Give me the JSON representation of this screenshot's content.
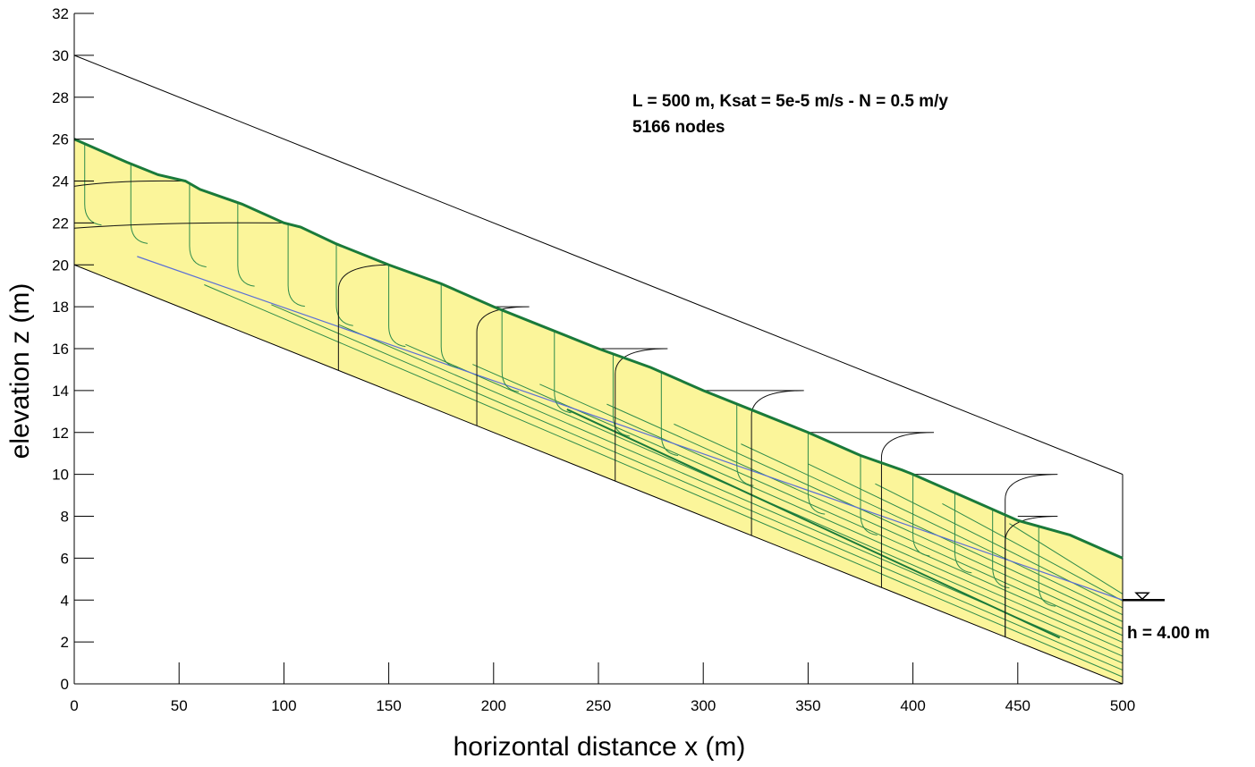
{
  "chart_data": {
    "type": "line",
    "xlabel": "horizontal distance x (m)",
    "ylabel": "elevation z (m)",
    "xlim": [
      0,
      500
    ],
    "ylim": [
      0,
      32
    ],
    "x_ticks": [
      0,
      50,
      100,
      150,
      200,
      250,
      300,
      350,
      400,
      450,
      500
    ],
    "y_ticks": [
      0,
      2,
      4,
      6,
      8,
      10,
      12,
      14,
      16,
      18,
      20,
      22,
      24,
      26,
      28,
      30,
      32
    ],
    "grid": false,
    "annotations": {
      "line1": "L = 500 m, Ksat = 5e-5 m/s - N = 0.5 m/y",
      "line2": "5166 nodes",
      "water_level": "h = 4.00 m"
    },
    "colors": {
      "fill": "#fbf59a",
      "water_table": "#1a7a3a",
      "equipotential": "#111111",
      "streamline": "#2e8b4a",
      "blue_line": "#5a6fd6"
    },
    "boundaries": {
      "land_surface": {
        "x": [
          0,
          500
        ],
        "y": [
          30,
          10
        ]
      },
      "bedrock": {
        "x": [
          0,
          500
        ],
        "y": [
          20,
          0
        ]
      },
      "right_boundary": {
        "x": [
          500,
          500
        ],
        "y": [
          0,
          10
        ]
      }
    },
    "water_table": {
      "x": [
        0,
        25,
        40,
        53,
        60,
        80,
        100,
        108,
        125,
        150,
        175,
        200,
        225,
        250,
        275,
        300,
        325,
        350,
        375,
        395,
        400,
        425,
        450,
        475,
        500
      ],
      "y": [
        26.0,
        24.9,
        24.3,
        24.0,
        23.6,
        22.9,
        22.0,
        21.8,
        21.0,
        20.0,
        19.1,
        18.0,
        17.0,
        16.0,
        15.1,
        14.0,
        13.0,
        12.0,
        10.9,
        10.2,
        10.0,
        8.9,
        7.8,
        7.1,
        6.0
      ]
    },
    "equipotentials": [
      {
        "head": 24,
        "x_start": 0,
        "x_crest": 52,
        "x_base": 52
      },
      {
        "head": 22,
        "x_start": 0,
        "x_crest": 100,
        "x_base": 57
      },
      {
        "head": 20,
        "x_start": 0,
        "x_crest": 150,
        "x_base": 126
      },
      {
        "head": 18,
        "x_start": 0,
        "x_crest": 200,
        "x_base": 192
      },
      {
        "head": 16,
        "x_start": 0,
        "x_crest": 250,
        "x_base": 258
      },
      {
        "head": 14,
        "x_start": 0,
        "x_crest": 300,
        "x_base": 323
      },
      {
        "head": 12,
        "x_start": 0,
        "x_crest": 350,
        "x_base": 385
      },
      {
        "head": 10,
        "x_start": 0,
        "x_crest": 400,
        "x_base": 444
      },
      {
        "head": 8,
        "x_start": 0,
        "x_crest": 450,
        "x_base": 444
      }
    ],
    "streamlines_vertical_x": [
      5,
      27,
      55,
      78,
      102,
      125,
      150,
      175,
      204,
      229,
      257,
      280,
      316,
      350,
      375,
      400,
      420,
      438,
      460
    ],
    "water_level_symbol": {
      "x": 500,
      "y": 4.0
    }
  }
}
